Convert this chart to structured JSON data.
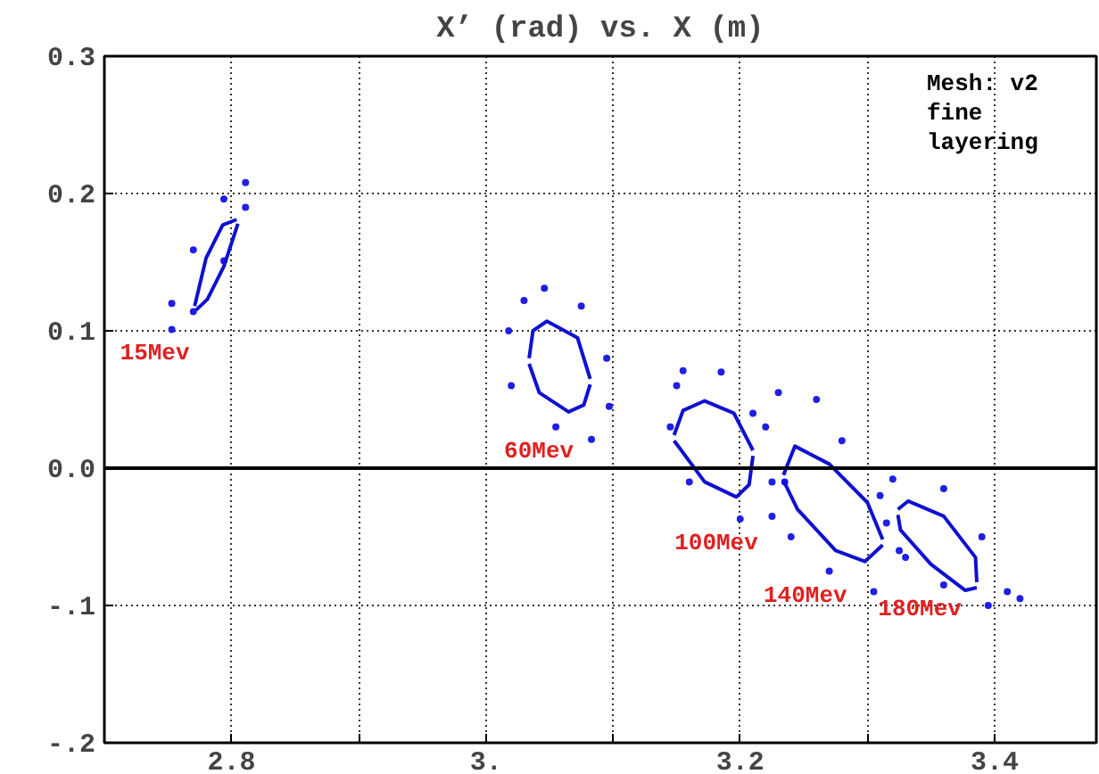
{
  "chart_data": {
    "type": "scatter",
    "title": "X’ (rad) vs. X (m)",
    "xlim": [
      2.7,
      3.48
    ],
    "ylim": [
      -0.2,
      0.3
    ],
    "xticks": [
      2.8,
      {
        "value": 2.9,
        "label": null
      },
      {
        "value": 3.0,
        "label": "3."
      },
      {
        "value": 3.1,
        "label": null
      },
      3.2,
      {
        "value": 3.3,
        "label": null
      },
      3.4
    ],
    "yticks": [
      {
        "value": -0.2,
        "label": "-.2"
      },
      {
        "value": -0.1,
        "label": "-.1"
      },
      {
        "value": 0,
        "label": "0.0"
      },
      0.1,
      0.2,
      0.3
    ],
    "grid": true,
    "ref_lines": [
      {
        "axis": "y",
        "value": 0,
        "color": "#000000"
      }
    ],
    "series": [
      {
        "marker": "circle",
        "color": "#1f1fe6",
        "x": [
          2.811,
          2.811,
          2.794,
          2.77,
          2.753,
          2.753,
          2.77,
          2.794
        ],
        "values": [
          0.208,
          0.19,
          0.151,
          0.114,
          0.101,
          0.12,
          0.159,
          0.196
        ]
      },
      {
        "type": "line",
        "marker": "none",
        "color": "#1010d0",
        "x": [
          2.771,
          2.78,
          2.793,
          2.804
        ],
        "values": [
          0.118,
          0.153,
          0.177,
          0.181
        ]
      },
      {
        "type": "line",
        "marker": "none",
        "color": "#1010d0",
        "x": [
          2.772,
          2.781,
          2.794,
          2.805
        ],
        "values": [
          0.115,
          0.123,
          0.147,
          0.178
        ]
      },
      {
        "marker": "circle",
        "color": "#1f1fe6",
        "x": [
          3.046,
          3.075,
          3.095,
          3.097,
          3.083,
          3.055,
          3.02,
          3.018,
          3.03
        ],
        "values": [
          0.131,
          0.118,
          0.08,
          0.045,
          0.021,
          0.03,
          0.06,
          0.1,
          0.122
        ]
      },
      {
        "type": "line",
        "marker": "none",
        "color": "#1010d0",
        "x": [
          3.034,
          3.037,
          3.048,
          3.072,
          3.082
        ],
        "values": [
          0.08,
          0.1,
          0.107,
          0.095,
          0.065
        ]
      },
      {
        "type": "line",
        "marker": "none",
        "color": "#1010d0",
        "x": [
          3.034,
          3.042,
          3.065,
          3.077,
          3.082
        ],
        "values": [
          0.076,
          0.055,
          0.041,
          0.046,
          0.061
        ]
      },
      {
        "marker": "circle",
        "color": "#1f1fe6",
        "x": [
          3.155,
          3.185,
          3.22,
          3.235,
          3.225,
          3.2,
          3.16,
          3.145,
          3.15
        ],
        "values": [
          0.071,
          0.07,
          0.03,
          -0.01,
          -0.035,
          -0.037,
          -0.01,
          0.03,
          0.06
        ]
      },
      {
        "type": "line",
        "marker": "none",
        "color": "#1010d0",
        "x": [
          3.148,
          3.155,
          3.172,
          3.195,
          3.21
        ],
        "values": [
          0.024,
          0.042,
          0.049,
          0.04,
          0.013
        ]
      },
      {
        "type": "line",
        "marker": "none",
        "color": "#1010d0",
        "x": [
          3.148,
          3.172,
          3.197,
          3.207,
          3.21
        ],
        "values": [
          0.02,
          -0.01,
          -0.021,
          -0.012,
          0.009
        ]
      },
      {
        "marker": "circle",
        "color": "#1f1fe6",
        "x": [
          3.23,
          3.26,
          3.28,
          3.31,
          3.325,
          3.305,
          3.27,
          3.24,
          3.225,
          3.21
        ],
        "values": [
          0.055,
          0.05,
          0.02,
          -0.02,
          -0.06,
          -0.09,
          -0.075,
          -0.05,
          -0.01,
          0.04
        ]
      },
      {
        "type": "line",
        "marker": "none",
        "color": "#1010d0",
        "x": [
          3.234,
          3.243,
          3.27,
          3.3,
          3.312
        ],
        "values": [
          -0.005,
          0.016,
          0.003,
          -0.025,
          -0.052
        ]
      },
      {
        "type": "line",
        "marker": "none",
        "color": "#1010d0",
        "x": [
          3.234,
          3.245,
          3.275,
          3.298,
          3.312
        ],
        "values": [
          -0.009,
          -0.03,
          -0.06,
          -0.068,
          -0.056
        ]
      },
      {
        "marker": "circle",
        "color": "#1f1fe6",
        "x": [
          3.32,
          3.36,
          3.39,
          3.41,
          3.42,
          3.395,
          3.36,
          3.33,
          3.315
        ],
        "values": [
          -0.008,
          -0.015,
          -0.05,
          -0.09,
          -0.095,
          -0.1,
          -0.085,
          -0.065,
          -0.04
        ]
      },
      {
        "type": "line",
        "marker": "none",
        "color": "#1010d0",
        "x": [
          3.324,
          3.332,
          3.36,
          3.385,
          3.386
        ],
        "values": [
          -0.03,
          -0.024,
          -0.035,
          -0.065,
          -0.083
        ]
      },
      {
        "type": "line",
        "marker": "none",
        "color": "#1010d0",
        "x": [
          3.324,
          3.326,
          3.35,
          3.377,
          3.386
        ],
        "values": [
          -0.034,
          -0.045,
          -0.07,
          -0.089,
          -0.087
        ]
      }
    ],
    "annotations": [
      "Mesh: v2\nfine\nlayering",
      "15Mev",
      "60Mev",
      "100Mev",
      "140Mev",
      "180Mev"
    ]
  }
}
